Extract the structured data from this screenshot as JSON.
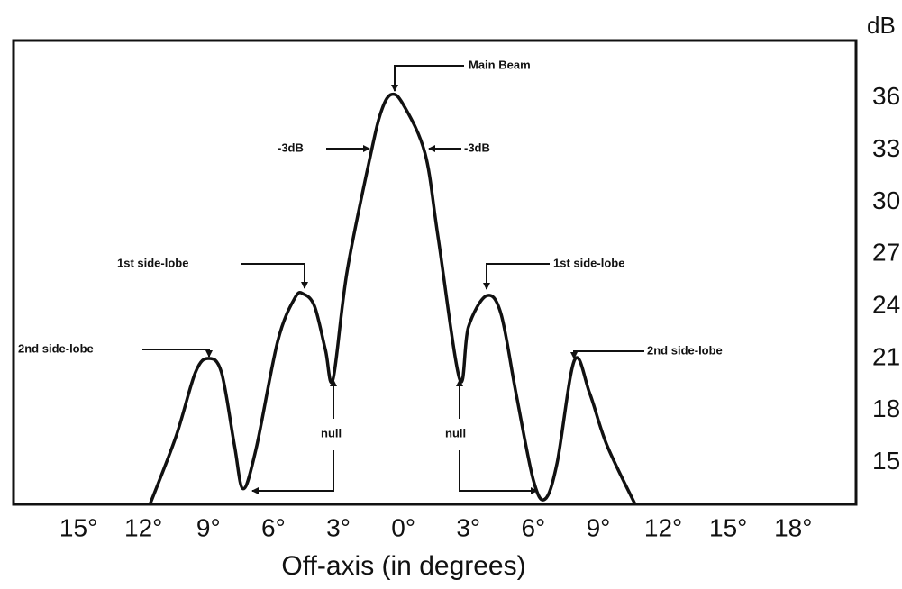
{
  "chart_data": {
    "type": "line",
    "xlabel": "Off-axis (in degrees)",
    "ylabel": "dB",
    "x": [
      -11.7,
      -10.5,
      -9.6,
      -9,
      -8.4,
      -7.8,
      -7.4,
      -6.8,
      -5.8,
      -5,
      -4.6,
      -4.1,
      -3.6,
      -3.25,
      -2.6,
      -1.5,
      -1,
      -0.54,
      0,
      1,
      1.6,
      2.6,
      3,
      3.83,
      4.5,
      5.2,
      6,
      6.54,
      7.1,
      7.9,
      8.6,
      9.4,
      10.7
    ],
    "series": [
      {
        "color": "#111111",
        "values": [
          12.6,
          16.5,
          20.2,
          21,
          20.2,
          16,
          13.5,
          15.8,
          22,
          24.5,
          24.7,
          24,
          21.5,
          19.8,
          26,
          32.8,
          35.3,
          36.2,
          35.6,
          32.8,
          28,
          19.8,
          22.8,
          24.6,
          23.6,
          19,
          14,
          12.9,
          15,
          20.9,
          19,
          16,
          12.6
        ]
      }
    ],
    "xlim": [
      -18.0,
      20.9
    ],
    "ylim": [
      12.6,
      39.3
    ],
    "xticks": [
      {
        "value": -15,
        "label": "15°"
      },
      {
        "value": -12,
        "label": "12°"
      },
      {
        "value": -9,
        "label": "9°"
      },
      {
        "value": -6,
        "label": "6°"
      },
      {
        "value": -3,
        "label": "3°"
      },
      {
        "value": 0,
        "label": "0°"
      },
      {
        "value": 3,
        "label": "3°"
      },
      {
        "value": 6,
        "label": "6°"
      },
      {
        "value": 9,
        "label": "9°"
      },
      {
        "value": 12,
        "label": "12°"
      },
      {
        "value": 15,
        "label": "15°"
      },
      {
        "value": 18,
        "label": "18°"
      }
    ],
    "yticks": [
      15,
      18,
      21,
      24,
      27,
      30,
      33,
      36
    ],
    "grid": false,
    "annotations": [
      "Main Beam",
      "-3dB",
      "-3dB",
      "1st side-lobe",
      "1st side-lobe",
      "2nd side-lobe",
      "2nd side-lobe",
      "null",
      "null"
    ]
  }
}
